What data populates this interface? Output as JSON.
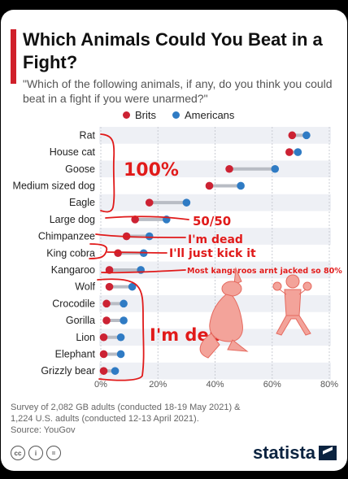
{
  "title": "Which Animals Could You Beat in a Fight?",
  "subtitle": "\"Which of the following animals, if any, do you think you could beat in a fight if you were unarmed?\"",
  "colors": {
    "brits": "#cc2233",
    "americans": "#2f7bc4",
    "annotation": "#e01a1a",
    "band": "#eef0f5"
  },
  "chart_data": {
    "type": "scatter",
    "categories": [
      "Rat",
      "House cat",
      "Goose",
      "Medium sized dog",
      "Eagle",
      "Large dog",
      "Chimpanzee",
      "King cobra",
      "Kangaroo",
      "Wolf",
      "Crocodile",
      "Gorilla",
      "Lion",
      "Elephant",
      "Grizzly bear"
    ],
    "series": [
      {
        "name": "Brits",
        "values": [
          67,
          66,
          45,
          38,
          17,
          12,
          9,
          6,
          3,
          3,
          2,
          2,
          1,
          1,
          1
        ]
      },
      {
        "name": "Americans",
        "values": [
          72,
          69,
          61,
          49,
          30,
          23,
          17,
          15,
          14,
          11,
          8,
          8,
          7,
          7,
          5
        ]
      }
    ],
    "xlim": [
      0,
      80
    ],
    "xticks": [
      "0%",
      "20%",
      "40%",
      "60%",
      "80%"
    ]
  },
  "annotations": {
    "a100": "100%",
    "a5050": "50/50",
    "dead1": "I'm dead",
    "kick": "I'll just kick it",
    "kangaroo": "Most kangaroos arnt jacked so 80%",
    "dead2": "I'm dead"
  },
  "footer": {
    "survey": "Survey of 2,082 GB adults (conducted 18-19 May 2021) &",
    "survey2": "1,224 U.S. adults (conducted 12-13 April 2021).",
    "source": "Source: YouGov"
  },
  "brand": "statista"
}
